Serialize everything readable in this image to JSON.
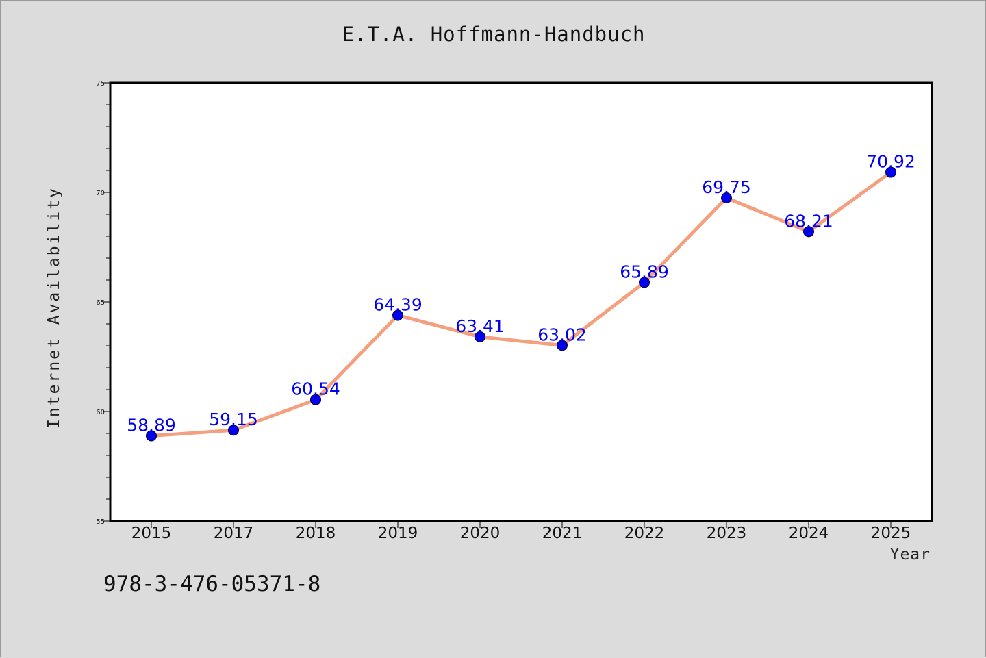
{
  "title": "E.T.A. Hoffmann-Handbuch",
  "footer_text": "978-3-476-05371-8",
  "chart_data": {
    "type": "line",
    "title": "E.T.A. Hoffmann-Handbuch",
    "xlabel": "Year",
    "ylabel": "Internet Availability",
    "categories": [
      "2015",
      "2017",
      "2018",
      "2019",
      "2020",
      "2021",
      "2022",
      "2023",
      "2024",
      "2025"
    ],
    "series": [
      {
        "values": [
          58.89,
          59.15,
          60.54,
          64.39,
          63.41,
          63.02,
          65.89,
          69.75,
          68.21,
          70.92
        ],
        "labels": [
          "58.89",
          "59.15",
          "60.54",
          "64.39",
          "63.41",
          "63.02",
          "65.89",
          "69.75",
          "68.21",
          "70.92"
        ]
      }
    ],
    "ylim": [
      55,
      75
    ],
    "yticks": [
      "55",
      "60",
      "65",
      "70",
      "75"
    ],
    "grid": false,
    "colors": {
      "line": "#f4a07e",
      "marker": "#0000ee",
      "label": "#0000ee",
      "frame": "#000000",
      "plot_bg": "#ffffff"
    }
  }
}
